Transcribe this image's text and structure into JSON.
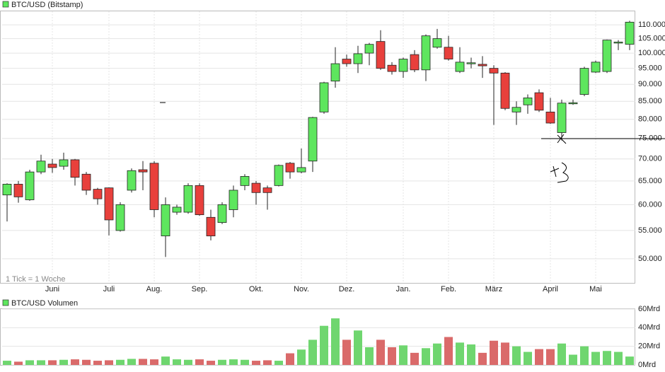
{
  "chart_data": [
    {
      "type": "candlestick",
      "title": "BTC/USD (Bitstamp)",
      "note": "1 Tick = 1 Woche",
      "log_scale": true,
      "grid": true,
      "up_color": "#5ee65e",
      "down_color": "#e8403c",
      "categories": [
        null,
        null,
        null,
        null,
        "Juni",
        null,
        null,
        null,
        null,
        "Juli",
        null,
        null,
        null,
        "Aug.",
        null,
        null,
        null,
        "Sep.",
        null,
        null,
        null,
        null,
        "Okt.",
        null,
        null,
        null,
        "Nov.",
        null,
        null,
        null,
        "Dez.",
        null,
        null,
        null,
        null,
        "Jan.",
        null,
        null,
        null,
        "Feb.",
        null,
        null,
        null,
        "März",
        null,
        null,
        null,
        null,
        "April",
        null,
        null,
        null,
        "Mai",
        null,
        null,
        null
      ],
      "open": [
        62000,
        64300,
        61000,
        67000,
        68800,
        68300,
        69800,
        66500,
        63200,
        63500,
        55000,
        63000,
        67500,
        69000,
        54000,
        58500,
        58500,
        64000,
        57500,
        56500,
        59000,
        64000,
        64500,
        63500,
        64000,
        69000,
        67000,
        69500,
        82000,
        91000,
        98000,
        96500,
        100000,
        104000,
        96000,
        94000,
        99500,
        94500,
        102000,
        102000,
        94000,
        96500,
        96300,
        95000,
        93500,
        82000,
        84000,
        87500,
        82000,
        76500,
        84300,
        87000,
        93800,
        94000,
        103500,
        103000
      ],
      "high": [
        64500,
        65000,
        67500,
        71000,
        70000,
        71500,
        70000,
        67000,
        63500,
        63600,
        60500,
        67800,
        69500,
        69500,
        61500,
        60000,
        64500,
        64500,
        59000,
        60500,
        64000,
        66500,
        65000,
        64000,
        68700,
        69300,
        72500,
        80700,
        90800,
        102000,
        99500,
        102500,
        103500,
        108000,
        97000,
        98500,
        101000,
        106500,
        108500,
        106000,
        102000,
        98500,
        99000,
        96000,
        93800,
        85000,
        87000,
        88500,
        86000,
        85500,
        85500,
        95500,
        97500,
        104700,
        104500,
        111500
      ],
      "low": [
        56700,
        60400,
        60800,
        66500,
        66800,
        67500,
        64000,
        62000,
        60000,
        54100,
        54800,
        62500,
        63000,
        57500,
        50300,
        58000,
        58200,
        57800,
        53200,
        56200,
        57500,
        63000,
        60000,
        59000,
        63800,
        65500,
        66700,
        67000,
        81500,
        89000,
        95500,
        93500,
        96000,
        94500,
        93000,
        92000,
        93800,
        91000,
        101500,
        97500,
        93500,
        95000,
        92000,
        78500,
        82500,
        78500,
        81500,
        82000,
        78800,
        74500,
        84000,
        86500,
        93500,
        93500,
        101000,
        101000
      ],
      "close": [
        64300,
        61600,
        67000,
        69500,
        68000,
        69800,
        65800,
        63000,
        61200,
        57000,
        60000,
        67300,
        67000,
        59000,
        60000,
        59500,
        64000,
        58000,
        54000,
        60000,
        63000,
        66000,
        62500,
        62500,
        68500,
        67000,
        68000,
        80500,
        90500,
        96500,
        96500,
        99800,
        103000,
        95000,
        94000,
        98000,
        94500,
        106000,
        105000,
        98000,
        97000,
        96800,
        95800,
        93500,
        83000,
        83300,
        86000,
        82500,
        79000,
        84500,
        84600,
        95000,
        97000,
        104500,
        103800,
        111000
      ],
      "ylim": [
        46100,
        115400
      ],
      "yticks": [
        {
          "value": 50000,
          "label": "50.000"
        },
        {
          "value": 55000,
          "label": "55.000"
        },
        {
          "value": 60000,
          "label": "60.000"
        },
        {
          "value": 65000,
          "label": "65.000"
        },
        {
          "value": 70000,
          "label": "70.000"
        },
        {
          "value": 75000,
          "label": "75.000"
        },
        {
          "value": 80000,
          "label": "80.000"
        },
        {
          "value": 85000,
          "label": "85.000"
        },
        {
          "value": 90000,
          "label": "90.000"
        },
        {
          "value": 95000,
          "label": "95.000"
        },
        {
          "value": 100000,
          "label": "100.000"
        },
        {
          "value": 105000,
          "label": "105.000"
        },
        {
          "value": 110000,
          "label": "110.000"
        }
      ]
    },
    {
      "type": "bar",
      "title": "BTC/USD Volumen",
      "grid": true,
      "up_color": "#6fd66f",
      "down_color": "#da6a6a",
      "values": [
        4.5,
        3.5,
        5,
        5,
        5,
        5.5,
        6,
        5.5,
        4.5,
        5,
        5.5,
        6.5,
        6.5,
        6,
        9,
        6,
        5.5,
        6,
        4.5,
        5.5,
        6,
        5.5,
        4.5,
        5,
        4.5,
        12.5,
        16.5,
        27,
        42,
        50,
        27,
        37,
        19,
        27,
        19,
        21,
        13,
        18,
        23,
        30,
        24,
        22,
        13,
        26,
        24,
        20,
        14,
        17,
        17,
        23,
        11,
        20,
        14,
        15,
        14,
        9
      ],
      "ylim": [
        0,
        60
      ],
      "yticks": [
        {
          "value": 0,
          "label": "0Mrd"
        },
        {
          "value": 20,
          "label": "20Mrd"
        },
        {
          "value": 40,
          "label": "40Mrd"
        },
        {
          "value": 60,
          "label": "60Mrd"
        }
      ]
    }
  ]
}
